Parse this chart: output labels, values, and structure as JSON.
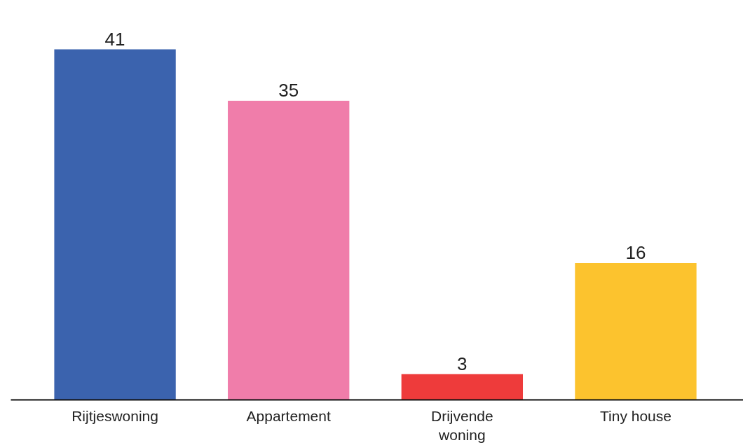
{
  "chart_data": {
    "type": "bar",
    "categories": [
      "Rijtjeswoning",
      "Appartement",
      "Drijvende woning",
      "Tiny house"
    ],
    "values": [
      41,
      35,
      3,
      16
    ],
    "colors": [
      "#3b63ae",
      "#f07daa",
      "#ee3b3b",
      "#fcc32e"
    ],
    "data_labels": true
  }
}
